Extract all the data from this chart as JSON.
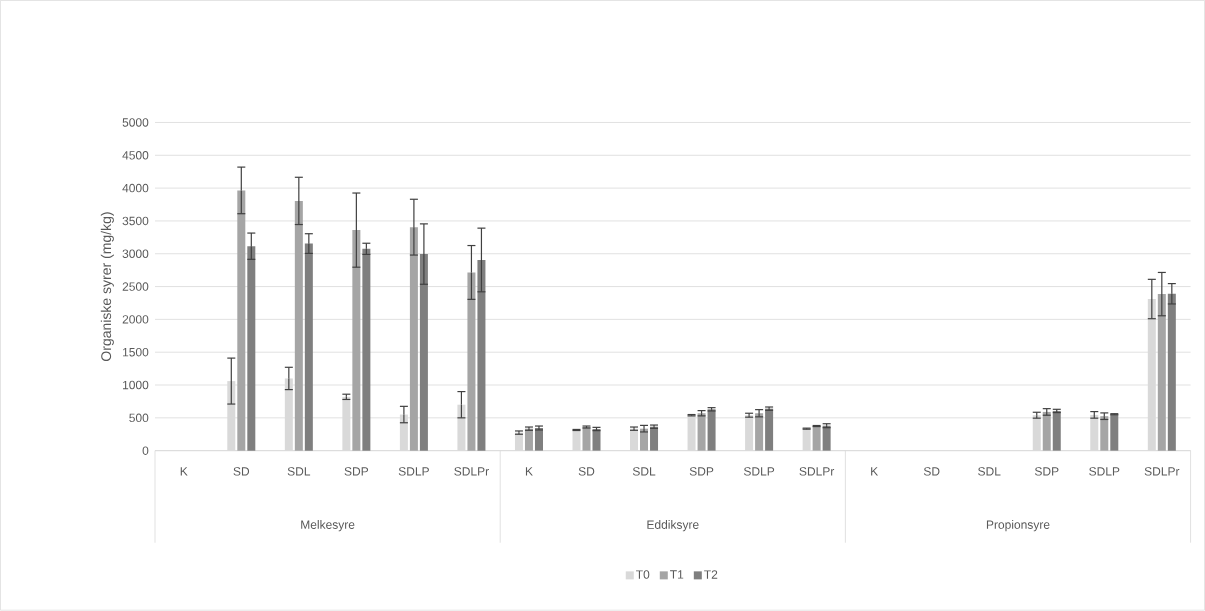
{
  "chart_data": {
    "type": "bar",
    "ylabel": "Organiske syrer (mg/kg)",
    "categories": [
      "K",
      "SD",
      "SDL",
      "SDP",
      "SDLP",
      "SDLPr",
      "K",
      "SD",
      "SDL",
      "SDP",
      "SDLP",
      "SDLPr",
      "K",
      "SD",
      "SDL",
      "SDP",
      "SDLP",
      "SDLPr"
    ],
    "annotations": [
      "Melkesyre",
      "Eddiksyre",
      "Propionsyre"
    ],
    "series": [
      {
        "name": "T0",
        "color": "#d9d9d9",
        "values": [
          0,
          1060,
          1100,
          820,
          550,
          700,
          275,
          315,
          335,
          540,
          540,
          335,
          0,
          0,
          0,
          540,
          545,
          2310
        ],
        "errors": [
          null,
          350,
          170,
          40,
          125,
          200,
          25,
          8,
          25,
          10,
          30,
          8,
          null,
          null,
          null,
          45,
          50,
          300
        ]
      },
      {
        "name": "T1",
        "color": "#a5a5a5",
        "values": [
          0,
          3965,
          3805,
          3360,
          3405,
          2715,
          335,
          360,
          335,
          570,
          570,
          375,
          0,
          0,
          0,
          590,
          525,
          2385
        ],
        "errors": [
          null,
          355,
          360,
          565,
          425,
          410,
          25,
          15,
          50,
          40,
          55,
          8,
          null,
          null,
          null,
          50,
          50,
          330
        ]
      },
      {
        "name": "T2",
        "color": "#7f7f7f",
        "values": [
          0,
          3115,
          3155,
          3075,
          2995,
          2905,
          345,
          330,
          365,
          630,
          640,
          380,
          0,
          0,
          0,
          605,
          555,
          2390
        ],
        "errors": [
          null,
          200,
          150,
          85,
          460,
          485,
          30,
          25,
          25,
          25,
          25,
          30,
          null,
          null,
          null,
          25,
          8,
          155
        ]
      }
    ],
    "ylim": [
      0,
      5000
    ],
    "yticks": [
      0,
      500,
      1000,
      1500,
      2000,
      2500,
      3000,
      3500,
      4000,
      4500,
      5000
    ],
    "grid": "y",
    "legend": "bottom"
  }
}
